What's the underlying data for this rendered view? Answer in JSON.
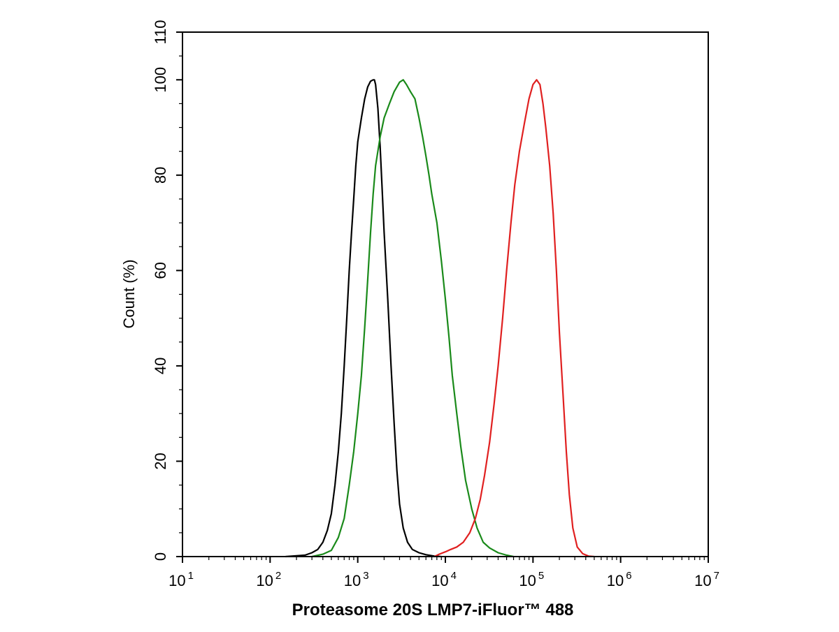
{
  "chart_data": {
    "type": "line",
    "title": "",
    "xlabel": "Proteasome 20S LMP7-iFluor™ 488",
    "ylabel": "Count  (%)",
    "xscale": "log",
    "xlim": [
      10,
      10000000
    ],
    "ylim": [
      0,
      110
    ],
    "grid": false,
    "legend": "none",
    "x_ticks": [
      {
        "base": "10",
        "exp": "1",
        "value": 10
      },
      {
        "base": "10",
        "exp": "2",
        "value": 100
      },
      {
        "base": "10",
        "exp": "3",
        "value": 1000
      },
      {
        "base": "10",
        "exp": "4",
        "value": 10000
      },
      {
        "base": "10",
        "exp": "5",
        "value": 100000
      },
      {
        "base": "10",
        "exp": "6",
        "value": 1000000
      },
      {
        "base": "10",
        "exp": "7",
        "value": 10000000
      }
    ],
    "y_ticks": [
      {
        "label": "0",
        "value": 0
      },
      {
        "label": "20",
        "value": 20
      },
      {
        "label": "40",
        "value": 40
      },
      {
        "label": "60",
        "value": 60
      },
      {
        "label": "80",
        "value": 80
      },
      {
        "label": "100",
        "value": 100
      },
      {
        "label": "110",
        "value": 110
      }
    ],
    "series": [
      {
        "color": "#000000",
        "points": [
          [
            150,
            0
          ],
          [
            250,
            0.3
          ],
          [
            300,
            0.8
          ],
          [
            350,
            1.5
          ],
          [
            400,
            3
          ],
          [
            450,
            5.5
          ],
          [
            500,
            9
          ],
          [
            550,
            15
          ],
          [
            600,
            22
          ],
          [
            650,
            30
          ],
          [
            700,
            40
          ],
          [
            750,
            50
          ],
          [
            800,
            60
          ],
          [
            850,
            68
          ],
          [
            900,
            75
          ],
          [
            950,
            82
          ],
          [
            1000,
            87
          ],
          [
            1100,
            92
          ],
          [
            1200,
            96
          ],
          [
            1300,
            98.5
          ],
          [
            1400,
            99.7
          ],
          [
            1500,
            100
          ],
          [
            1550,
            100
          ],
          [
            1600,
            99
          ],
          [
            1700,
            94
          ],
          [
            1800,
            86
          ],
          [
            1900,
            77
          ],
          [
            2000,
            68
          ],
          [
            2200,
            54
          ],
          [
            2400,
            40
          ],
          [
            2600,
            28
          ],
          [
            2800,
            18
          ],
          [
            3000,
            11
          ],
          [
            3300,
            6
          ],
          [
            3700,
            3
          ],
          [
            4200,
            1.5
          ],
          [
            5000,
            0.8
          ],
          [
            6000,
            0.4
          ],
          [
            7500,
            0.1
          ],
          [
            9000,
            0
          ]
        ]
      },
      {
        "color": "#1a8a1a",
        "points": [
          [
            300,
            0
          ],
          [
            400,
            0.5
          ],
          [
            500,
            1.3
          ],
          [
            600,
            4
          ],
          [
            700,
            8
          ],
          [
            800,
            15
          ],
          [
            900,
            22
          ],
          [
            1000,
            30
          ],
          [
            1100,
            38
          ],
          [
            1200,
            48
          ],
          [
            1300,
            58
          ],
          [
            1400,
            68
          ],
          [
            1500,
            76
          ],
          [
            1600,
            82
          ],
          [
            1800,
            88
          ],
          [
            2000,
            92
          ],
          [
            2300,
            95
          ],
          [
            2600,
            97.5
          ],
          [
            3000,
            99.5
          ],
          [
            3300,
            100
          ],
          [
            3600,
            99
          ],
          [
            4000,
            97.5
          ],
          [
            4500,
            96
          ],
          [
            5000,
            92
          ],
          [
            5500,
            88
          ],
          [
            6000,
            84
          ],
          [
            6500,
            80
          ],
          [
            7000,
            76
          ],
          [
            8000,
            70
          ],
          [
            9000,
            62
          ],
          [
            10000,
            54
          ],
          [
            11000,
            46
          ],
          [
            12000,
            38
          ],
          [
            13500,
            30
          ],
          [
            15000,
            23
          ],
          [
            17000,
            16
          ],
          [
            20000,
            10
          ],
          [
            23000,
            6
          ],
          [
            27000,
            3
          ],
          [
            32000,
            1.8
          ],
          [
            40000,
            0.8
          ],
          [
            50000,
            0.3
          ],
          [
            60000,
            0
          ]
        ]
      },
      {
        "color": "#e02020",
        "points": [
          [
            7500,
            0
          ],
          [
            8500,
            0.5
          ],
          [
            10000,
            1
          ],
          [
            11500,
            1.5
          ],
          [
            13500,
            2
          ],
          [
            16000,
            3
          ],
          [
            19000,
            5
          ],
          [
            22000,
            8
          ],
          [
            25000,
            12
          ],
          [
            28000,
            17
          ],
          [
            32000,
            24
          ],
          [
            36000,
            32
          ],
          [
            40000,
            40
          ],
          [
            45000,
            50
          ],
          [
            50000,
            60
          ],
          [
            56000,
            70
          ],
          [
            62000,
            78
          ],
          [
            70000,
            85
          ],
          [
            80000,
            91
          ],
          [
            90000,
            96
          ],
          [
            100000,
            99
          ],
          [
            110000,
            100
          ],
          [
            120000,
            99
          ],
          [
            130000,
            95
          ],
          [
            140000,
            90
          ],
          [
            155000,
            82
          ],
          [
            170000,
            72
          ],
          [
            185000,
            60
          ],
          [
            200000,
            47
          ],
          [
            220000,
            34
          ],
          [
            240000,
            22
          ],
          [
            260000,
            13
          ],
          [
            285000,
            6
          ],
          [
            320000,
            2
          ],
          [
            370000,
            0.6
          ],
          [
            430000,
            0.1
          ],
          [
            500000,
            0
          ]
        ]
      }
    ]
  }
}
